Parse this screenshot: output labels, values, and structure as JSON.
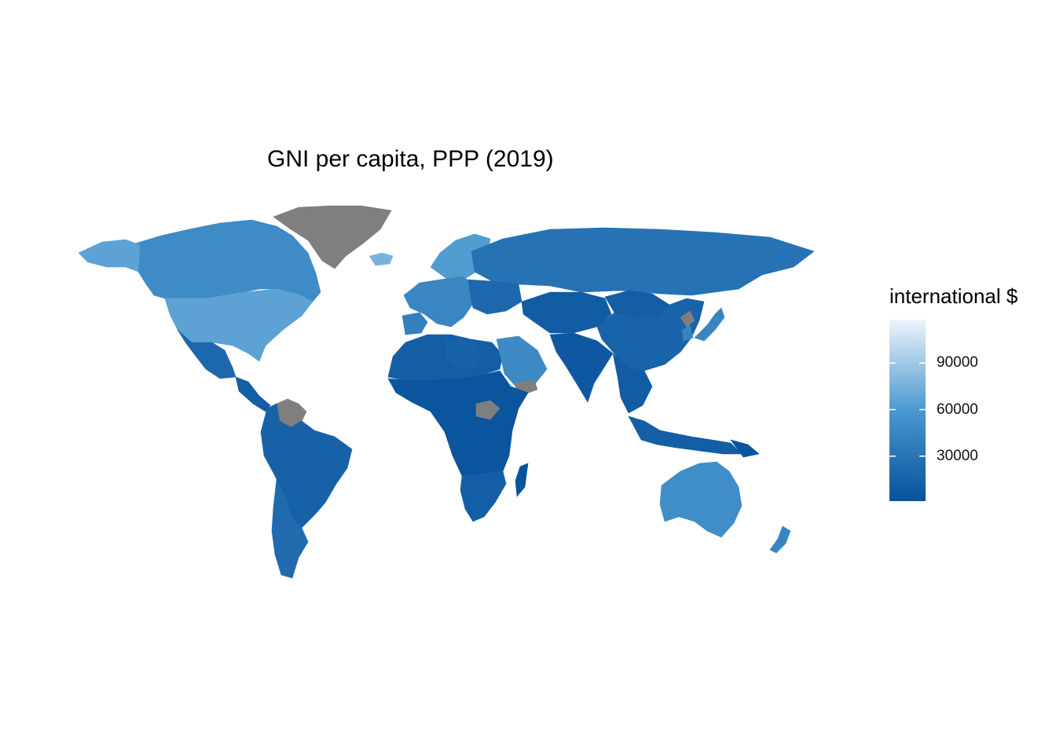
{
  "title": "GNI per capita, PPP (2019)",
  "legend": {
    "title": "international $",
    "ticks": [
      {
        "value": 90000,
        "label": "90000"
      },
      {
        "value": 60000,
        "label": "60000"
      },
      {
        "value": 30000,
        "label": "30000"
      }
    ],
    "range": [
      1000,
      118000
    ],
    "colors": {
      "low": "#08519c",
      "mid": "#4a98cf",
      "high": "#eef4fd",
      "missing": "#7f7f7f"
    }
  },
  "regions": [
    {
      "name": "Canada",
      "value": 49000
    },
    {
      "name": "Alaska",
      "value": 66000
    },
    {
      "name": "United States",
      "value": 66000
    },
    {
      "name": "Greenland",
      "value": null
    },
    {
      "name": "Mexico",
      "value": 20000
    },
    {
      "name": "Central America",
      "value": 12000
    },
    {
      "name": "Venezuela",
      "value": null
    },
    {
      "name": "South America",
      "value": 14000
    },
    {
      "name": "Chile/Argentina",
      "value": 22000
    },
    {
      "name": "Iceland",
      "value": 76000
    },
    {
      "name": "Scandinavia",
      "value": 62000
    },
    {
      "name": "Europe",
      "value": 45000
    },
    {
      "name": "Iberia",
      "value": 40000
    },
    {
      "name": "Russia",
      "value": 28000
    },
    {
      "name": "Eastern Europe",
      "value": 20000
    },
    {
      "name": "North Africa",
      "value": 12000
    },
    {
      "name": "Libya",
      "value": 15000
    },
    {
      "name": "Arabian Peninsula",
      "value": 48000
    },
    {
      "name": "Yemen",
      "value": null
    },
    {
      "name": "Sub-Saharan Africa",
      "value": 3500
    },
    {
      "name": "South Sudan",
      "value": null
    },
    {
      "name": "Southern Africa",
      "value": 12000
    },
    {
      "name": "Madagascar",
      "value": 1700
    },
    {
      "name": "Central Asia",
      "value": 10000
    },
    {
      "name": "Mongolia",
      "value": 12000
    },
    {
      "name": "China",
      "value": 16000
    },
    {
      "name": "India",
      "value": 6900
    },
    {
      "name": "Southeast Asia",
      "value": 10000
    },
    {
      "name": "North Korea",
      "value": null
    },
    {
      "name": "Japan",
      "value": 44000
    },
    {
      "name": "South Korea",
      "value": 43000
    },
    {
      "name": "Indonesia",
      "value": 12000
    },
    {
      "name": "Papua New Guinea",
      "value": 4000
    },
    {
      "name": "Australia",
      "value": 51000
    },
    {
      "name": "New Zealand",
      "value": 44000
    }
  ]
}
